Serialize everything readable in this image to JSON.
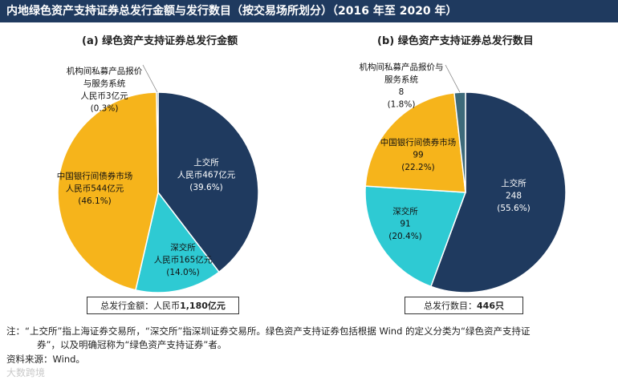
{
  "header": {
    "title": "内地绿色资产支持证券总发行金额与发行数目（按交易场所划分）（2016 年至 2020 年）"
  },
  "panels": [
    {
      "title": "(a)   绿色资产支持证券总发行金额",
      "total_label": "总发行金额：人民币",
      "total_value": "1,180亿元"
    },
    {
      "title": "(b)   绿色资产支持证券总发行数目",
      "total_label": "总发行数目：",
      "total_value": "446只"
    }
  ],
  "chart_data": [
    {
      "type": "pie",
      "title": "(a)   绿色资产支持证券总发行金额",
      "unit": "亿元人民币",
      "total": "总发行金额：人民币1,180亿元",
      "slices": [
        {
          "name": "上交所",
          "value": 467,
          "value_label": "人民币467亿元",
          "percent_label": "(39.6%)",
          "color": "#1f3a5f"
        },
        {
          "name": "深交所",
          "value": 165,
          "value_label": "人民币165亿元",
          "percent_label": "(14.0%)",
          "color": "#2ecad3"
        },
        {
          "name": "中国银行间债券市场",
          "value": 544,
          "value_label": "人民币544亿元",
          "percent_label": "(46.1%)",
          "color": "#f6b41b"
        },
        {
          "name": "机构间私募产品报价与服务系统",
          "name_lines": [
            "机构间私募产品报价",
            "与服务系统"
          ],
          "value": 3,
          "value_label": "人民币3亿元",
          "percent_label": "(0.3%)",
          "color": "#3d6a7a"
        }
      ]
    },
    {
      "type": "pie",
      "title": "(b)   绿色资产支持证券总发行数目",
      "unit": "只",
      "total": "总发行数目：446只",
      "slices": [
        {
          "name": "上交所",
          "value": 248,
          "value_label": "248",
          "percent_label": "(55.6%)",
          "color": "#1f3a5f"
        },
        {
          "name": "深交所",
          "value": 91,
          "value_label": "91",
          "percent_label": "(20.4%)",
          "color": "#2ecad3"
        },
        {
          "name": "中国银行间债券市场",
          "value": 99,
          "value_label": "99",
          "percent_label": "(22.2%)",
          "color": "#f6b41b"
        },
        {
          "name": "机构间私募产品报价与服务系统",
          "name_lines": [
            "机构间私募产品报价与",
            "服务系统"
          ],
          "value": 8,
          "value_label": "8",
          "percent_label": "(1.8%)",
          "color": "#3d6a7a"
        }
      ]
    }
  ],
  "notes": {
    "line1": "注：“上交所”指上海证券交易所，“深交所”指深圳证券交易所。绿色资产支持证券包括根据 Wind 的定义分类为“绿色资产支持证",
    "line2": "券”，以及明确冠称为“绿色资产支持证券”者。",
    "source": "资料来源：Wind。"
  },
  "watermark": "大数跨境"
}
